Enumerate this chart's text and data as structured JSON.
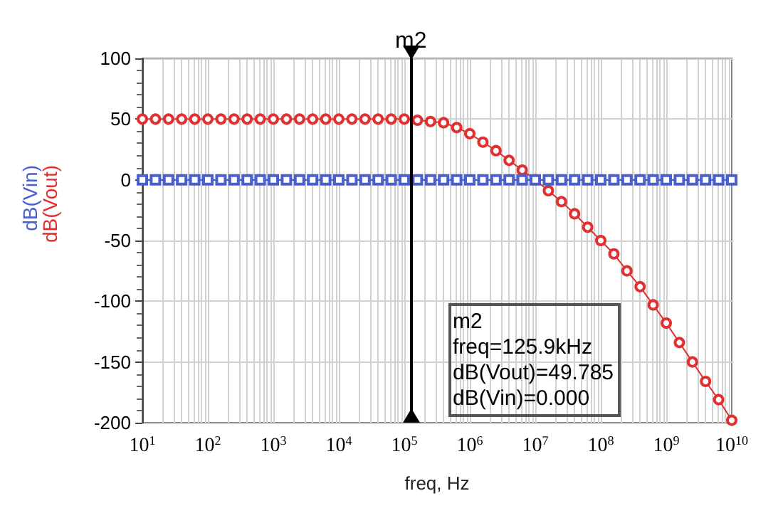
{
  "chart_data": {
    "type": "line",
    "xlabel": "freq, Hz",
    "log": "x",
    "x": [
      10.0,
      15.85,
      25.12,
      39.81,
      63.1,
      100.0,
      158.5,
      251.2,
      398.1,
      631.0,
      1000.0,
      1585.0,
      2512.0,
      3981.0,
      6310.0,
      10000.0,
      15850.0,
      25120.0,
      39810.0,
      63100.0,
      100000.0,
      158500.0,
      251200.0,
      398100.0,
      631000.0,
      1000000.0,
      1585000.0,
      2512000.0,
      3981000.0,
      6310000.0,
      10000000.0,
      15850000.0,
      25120000.0,
      39810000.0,
      63100000.0,
      100000000.0,
      158500000.0,
      251200000.0,
      398100000.0,
      631000000.0,
      1000000000.0,
      1585000000.0,
      2512000000.0,
      3981000000.0,
      6310000000.0,
      10000000000.0
    ],
    "series": [
      {
        "name": "dB(Vout)",
        "color": "#e03030",
        "marker": "circle",
        "values": [
          50,
          50,
          50,
          50,
          50,
          50,
          50,
          50,
          50,
          50,
          50,
          50,
          50,
          50,
          50,
          50,
          50,
          50,
          50,
          50,
          50,
          49,
          48,
          47,
          43,
          38,
          31,
          24,
          16,
          8,
          0,
          -9,
          -18,
          -28,
          -39,
          -50,
          -61,
          -75,
          -88,
          -103,
          -118,
          -134,
          -150,
          -166,
          -181,
          -198
        ]
      },
      {
        "name": "dB(Vin)",
        "color": "#4a5fd0",
        "marker": "square",
        "values": [
          0,
          0,
          0,
          0,
          0,
          0,
          0,
          0,
          0,
          0,
          0,
          0,
          0,
          0,
          0,
          0,
          0,
          0,
          0,
          0,
          0,
          0,
          0,
          0,
          0,
          0,
          0,
          0,
          0,
          0,
          0,
          0,
          0,
          0,
          0,
          0,
          0,
          0,
          0,
          0,
          0,
          0,
          0,
          0,
          0,
          0
        ]
      }
    ],
    "xlim": [
      10,
      10000000000
    ],
    "xticks": [
      {
        "value": 10,
        "label": "10$^{1}$"
      },
      {
        "value": 100,
        "label": "10$^{2}$"
      },
      {
        "value": 1000,
        "label": "10$^{3}$"
      },
      {
        "value": 10000,
        "label": "10$^{4}$"
      },
      {
        "value": 100000,
        "label": "10$^{5}$"
      },
      {
        "value": 1000000,
        "label": "10$^{6}$"
      },
      {
        "value": 10000000,
        "label": "10$^{7}$"
      },
      {
        "value": 100000000,
        "label": "10$^{8}$"
      },
      {
        "value": 1000000000,
        "label": "10$^{9}$"
      },
      {
        "value": 10000000000,
        "label": "10$^{10}$"
      }
    ],
    "ylim": [
      -200,
      100
    ],
    "yticks": [
      -200,
      -150,
      -100,
      -50,
      0,
      50,
      100
    ],
    "grid": true,
    "legend": "left",
    "ref_lines": [
      {
        "axis": "x",
        "value": 125900,
        "label": "m2",
        "color": "#000000"
      }
    ],
    "annotations": [
      "m2",
      "freq=125.9kHz",
      "dB(Vout)=49.785",
      "dB(Vin)=0.000"
    ]
  }
}
